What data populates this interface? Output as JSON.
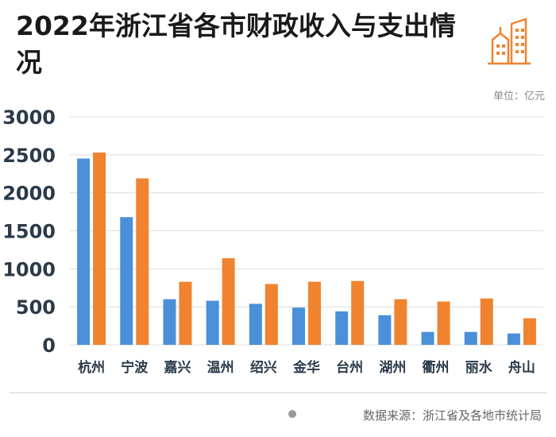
{
  "title": "2022年浙江省各市财政收入与支出情况",
  "unit": "单位：亿元",
  "source": "数据来源：浙江省及各地市统计局",
  "logo_icon": "city-buildings-icon",
  "colors": {
    "revenue": "#4a90d9",
    "expenditure": "#f0832f",
    "grid": "#dddddd",
    "axis_text": "#2b3a4a"
  },
  "chart_data": {
    "type": "bar",
    "title": "2022年浙江省各市财政收入与支出情况",
    "ylabel": "单位：亿元",
    "ylim": [
      0,
      3000
    ],
    "yticks": [
      0,
      500,
      1000,
      1500,
      2000,
      2500,
      3000
    ],
    "grid": true,
    "legend": "none",
    "categories": [
      "杭州",
      "宁波",
      "嘉兴",
      "温州",
      "绍兴",
      "金华",
      "台州",
      "湖州",
      "衢州",
      "丽水",
      "舟山"
    ],
    "series": [
      {
        "values": [
          2451,
          1680,
          600,
          580,
          540,
          490,
          440,
          390,
          170,
          170,
          150
        ]
      },
      {
        "values": [
          2530,
          2190,
          830,
          1140,
          800,
          830,
          840,
          600,
          570,
          610,
          350
        ]
      }
    ]
  }
}
